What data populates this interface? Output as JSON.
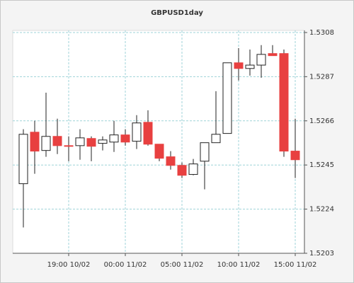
{
  "chart_data": {
    "type": "candlestick",
    "title": "GBPUSD1day",
    "categories": [
      null,
      null,
      null,
      null,
      "19:00 10/02",
      null,
      null,
      null,
      null,
      "00:00 11/02",
      null,
      null,
      null,
      null,
      "05:00 11/02",
      null,
      null,
      null,
      null,
      "10:00 11/02",
      null,
      null,
      null,
      null,
      "15:00 11/02"
    ],
    "open": [
      1.52361,
      1.52606,
      1.52519,
      1.52586,
      1.52542,
      1.52542,
      1.52576,
      1.52553,
      1.52559,
      1.52593,
      1.52563,
      1.52653,
      1.52549,
      1.52489,
      1.52448,
      1.52405,
      1.52468,
      1.52556,
      1.526,
      1.52936,
      1.52909,
      1.52925,
      1.5298,
      1.5298,
      1.52516
    ],
    "high": [
      1.5262,
      1.5266,
      1.52794,
      1.5267,
      1.52586,
      1.5262,
      1.52586,
      1.52586,
      1.5266,
      1.5262,
      1.52687,
      1.5271,
      1.52549,
      1.52516,
      1.52462,
      1.52479,
      1.52556,
      1.52801,
      1.52936,
      1.53006,
      1.52999,
      1.5302,
      1.5302,
      1.52999,
      1.5267
    ],
    "low": [
      1.52153,
      1.52408,
      1.52489,
      1.52502,
      1.52468,
      1.52475,
      1.52468,
      1.52519,
      1.52512,
      1.52542,
      1.52526,
      1.52542,
      1.52468,
      1.52428,
      1.52388,
      1.52401,
      1.52334,
      1.52556,
      1.526,
      1.52852,
      1.52875,
      1.52865,
      1.5297,
      1.52489,
      1.52388
    ],
    "close": [
      1.52596,
      1.52516,
      1.52586,
      1.52542,
      1.52539,
      1.52579,
      1.52539,
      1.52569,
      1.52593,
      1.52559,
      1.5265,
      1.52549,
      1.52482,
      1.52448,
      1.52401,
      1.52455,
      1.52556,
      1.52596,
      1.52936,
      1.52909,
      1.52925,
      1.52976,
      1.5297,
      1.52516,
      1.52475
    ],
    "up_color": "#ffffff",
    "down_color": "#e84040",
    "ylim": [
      1.5203,
      1.5309
    ],
    "yticks": [
      1.5203,
      1.5224,
      1.5245,
      1.5266,
      1.5287,
      1.5308
    ],
    "grid": true
  }
}
